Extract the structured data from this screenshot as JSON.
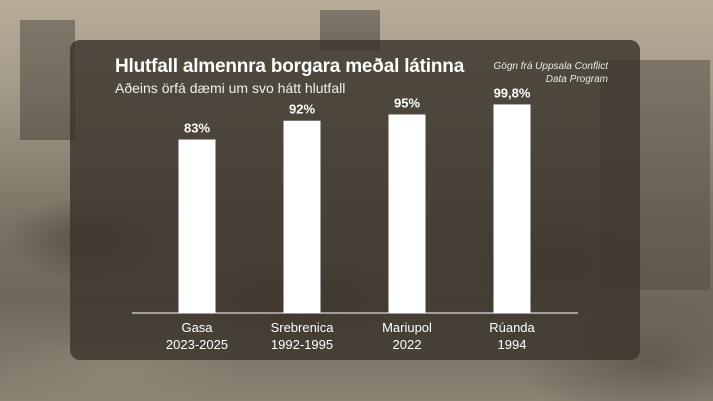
{
  "colors": {
    "panel": "#3a342c",
    "bar": "#ffffff",
    "text": "#ffffff"
  },
  "source_lines": [
    "Gögn frá Uppsala Conflict",
    "Data Program"
  ],
  "chart_data": {
    "type": "bar",
    "title": "Hlutfall almennra borgara meðal látinna",
    "subtitle": "Aðeins örfá dæmi um svo hátt hlutfall",
    "categories": [
      {
        "name": "Gasa",
        "period": "2023-2025"
      },
      {
        "name": "Srebrenica",
        "period": "1992-1995"
      },
      {
        "name": "Mariupol",
        "period": "2022"
      },
      {
        "name": "Rúanda",
        "period": "1994"
      }
    ],
    "values": [
      83,
      92,
      95,
      99.8
    ],
    "value_labels": [
      "83%",
      "92%",
      "95%",
      "99,8%"
    ],
    "unit": "%",
    "ylim": [
      0,
      100
    ],
    "grid": false
  }
}
